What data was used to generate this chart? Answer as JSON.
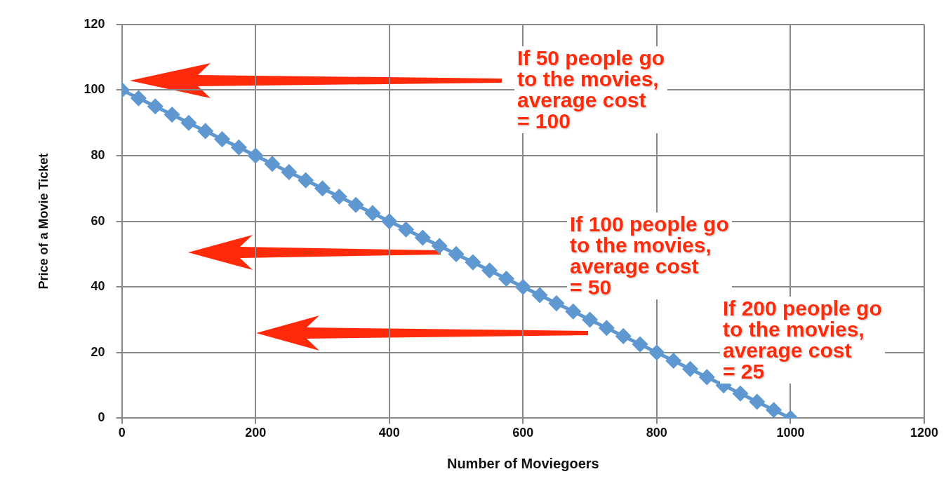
{
  "chart_data": {
    "type": "line",
    "xlabel": "Number of Moviegoers",
    "ylabel": "Price of a Movie Ticket",
    "x": [
      0,
      25,
      50,
      75,
      100,
      125,
      150,
      175,
      200,
      225,
      250,
      275,
      300,
      325,
      350,
      375,
      400,
      425,
      450,
      475,
      500,
      525,
      550,
      575,
      600,
      625,
      650,
      675,
      700,
      725,
      750,
      775,
      800,
      825,
      850,
      875,
      900,
      925,
      950,
      975,
      1000
    ],
    "series": [
      {
        "color": "#5f98d0",
        "values": [
          100,
          97.5,
          95,
          92.5,
          90,
          87.5,
          85,
          82.5,
          80,
          77.5,
          75,
          72.5,
          70,
          67.5,
          65,
          62.5,
          60,
          57.5,
          55,
          52.5,
          50,
          47.5,
          45,
          42.5,
          40,
          37.5,
          35,
          32.5,
          30,
          27.5,
          25,
          22.5,
          20,
          17.5,
          15,
          12.5,
          10,
          7.5,
          5,
          2.5,
          0
        ]
      }
    ],
    "xlim": [
      0,
      1200
    ],
    "xticks": [
      0,
      200,
      400,
      600,
      800,
      1000,
      1200
    ],
    "ylim": [
      0,
      120
    ],
    "yticks": [
      0,
      20,
      40,
      60,
      80,
      100,
      120
    ],
    "grid": true,
    "legend": false,
    "marker": "diamond",
    "annotations": [
      "If 50 people go\nto the movies,\naverage cost\n= 100",
      "If 100 people go\nto the movies,\naverage cost\n= 50",
      "If 200 people go\nto the movies,\naverage cost\n= 25"
    ]
  }
}
